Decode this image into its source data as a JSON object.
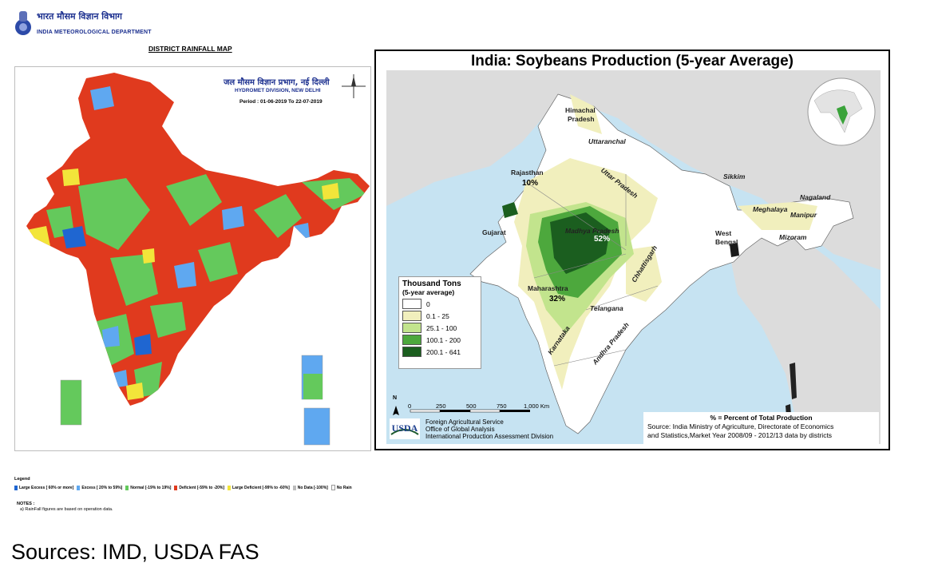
{
  "left_map": {
    "org_hindi": "भारत मौसम विज्ञान विभाग",
    "org_name": "INDIA METEOROLOGICAL DEPARTMENT",
    "title": "DISTRICT RAINFALL MAP",
    "division_hindi": "जल मौसम विज्ञान प्रभाग, नई दिल्ली",
    "division": "HYDROMET DIVISION, NEW DELHI",
    "period": "Period : 01-06-2019 To 22-07-2019",
    "legend_title": "Legend",
    "legend": [
      {
        "label": "Large Excess [ 60% or more]",
        "color": "#1f66d1"
      },
      {
        "label": "Excess [ 20% to 59%]",
        "color": "#5fa8f0"
      },
      {
        "label": "Normal [-19% to 19%]",
        "color": "#64c95c"
      },
      {
        "label": "Deficient [-59% to -20%]",
        "color": "#e03a1e"
      },
      {
        "label": "Large Deficient [-99% to -60%]",
        "color": "#f2e53a"
      },
      {
        "label": "No Data [-100%]",
        "color": "#bcbcbc"
      },
      {
        "label": "No Rain",
        "color": "#ffffff"
      }
    ],
    "notes_title": "NOTES :",
    "note_a": "a) RainFall figures are based on operation data."
  },
  "right_map": {
    "title": "India: Soybeans Production (5-year Average)",
    "states": {
      "himachal": "Himachal",
      "pradesh": "Pradesh",
      "uttaranchal": "Uttaranchal",
      "uttar_pradesh": "Uttar Pradesh",
      "rajasthan": "Rajasthan",
      "sikkim": "Sikkim",
      "nagaland": "Nagaland",
      "meghalaya": "Meghalaya",
      "manipur": "Manipur",
      "mizoram": "Mizoram",
      "gujarat": "Gujarat",
      "madhya_pradesh": "Madhya Pradesh",
      "west": "West",
      "bengal": "Bengal",
      "chhattisgarh": "Chhattisgarh",
      "maharashtra": "Maharashtra",
      "telangana": "Telangana",
      "karnataka": "Karnataka",
      "andhra_pradesh": "Andhra Pradesh"
    },
    "shares": {
      "rajasthan": "10%",
      "madhya_pradesh": "52%",
      "maharashtra": "32%"
    },
    "legend_title": "Thousand Tons",
    "legend_subtitle": "(5-year average)",
    "legend": [
      {
        "label": "0",
        "color": "#ffffff"
      },
      {
        "label": "0.1 - 25",
        "color": "#f1efbd"
      },
      {
        "label": "25.1 - 100",
        "color": "#c2e48d"
      },
      {
        "label": "100.1 - 200",
        "color": "#4da83d"
      },
      {
        "label": "200.1 - 641",
        "color": "#1b5e1f"
      }
    ],
    "scale_labels": [
      "0",
      "250",
      "500",
      "750",
      "1,000 Km"
    ],
    "north": "N",
    "usda": "USDA",
    "fas_lines": [
      "Foreign Agricultural Service",
      "Office of Global Analysis",
      "International Production Assessment Division"
    ],
    "pct_note": "% = Percent of Total Production",
    "source_lines": [
      "Source: India Ministry of Agriculture, Directorate of Economics",
      "and Statistics,Market Year 2008/09 - 2012/13 data by districts"
    ]
  },
  "footer": {
    "sources": "Sources: IMD, USDA FAS"
  }
}
